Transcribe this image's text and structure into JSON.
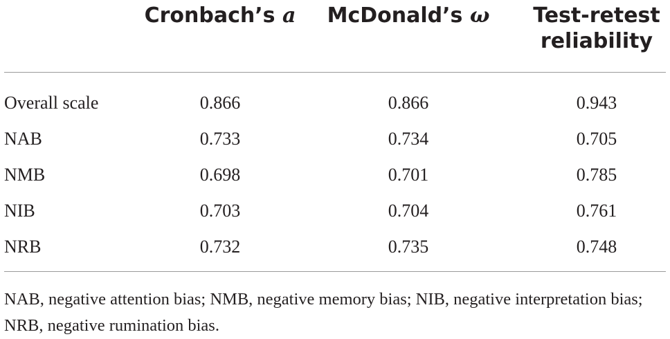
{
  "table": {
    "headers": [
      {
        "text": "Cronbach’s",
        "symbol": "a"
      },
      {
        "text": "McDonald’s",
        "symbol": "ω"
      },
      {
        "text": "Test-retest reliability"
      }
    ],
    "rows": [
      [
        "Overall scale",
        "0.866",
        "0.866",
        "0.943"
      ],
      [
        "NAB",
        "0.733",
        "0.734",
        "0.705"
      ],
      [
        "NMB",
        "0.698",
        "0.701",
        "0.785"
      ],
      [
        "NIB",
        "0.703",
        "0.704",
        "0.761"
      ],
      [
        "NRB",
        "0.732",
        "0.735",
        "0.748"
      ]
    ],
    "footnote": "NAB, negative attention bias; NMB, negative memory bias; NIB, negative interpretation bias; NRB, negative rumination bias."
  }
}
